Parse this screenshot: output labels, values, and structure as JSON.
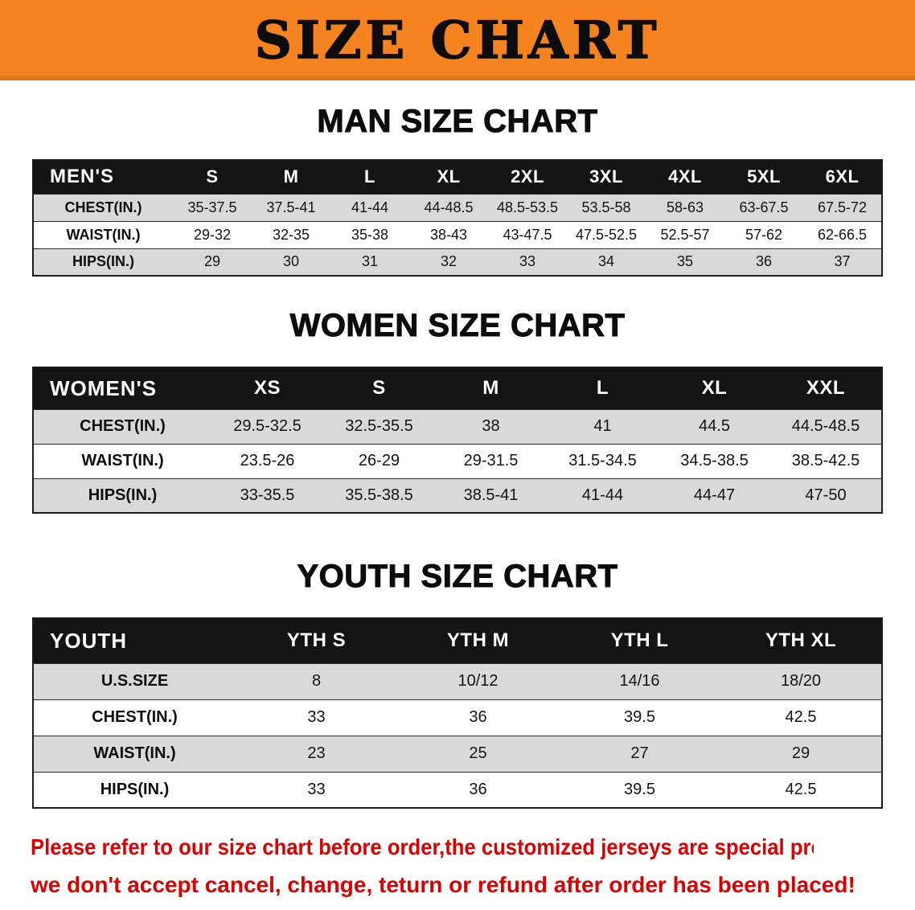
{
  "banner": {
    "title": "SIZE CHART"
  },
  "men": {
    "heading": "MAN SIZE CHART",
    "table": {
      "corner_label": "MEN'S",
      "columns": [
        "S",
        "M",
        "L",
        "XL",
        "2XL",
        "3XL",
        "4XL",
        "5XL",
        "6XL"
      ],
      "rows": [
        {
          "label": "CHEST(IN.)",
          "values": [
            "35-37.5",
            "37.5-41",
            "41-44",
            "44-48.5",
            "48.5-53.5",
            "53.5-58",
            "58-63",
            "63-67.5",
            "67.5-72"
          ]
        },
        {
          "label": "WAIST(IN.)",
          "values": [
            "29-32",
            "32-35",
            "35-38",
            "38-43",
            "43-47.5",
            "47.5-52.5",
            "52.5-57",
            "57-62",
            "62-66.5"
          ]
        },
        {
          "label": "HIPS(IN.)",
          "values": [
            "29",
            "30",
            "31",
            "32",
            "33",
            "34",
            "35",
            "36",
            "37"
          ]
        }
      ]
    }
  },
  "women": {
    "heading": "WOMEN SIZE CHART",
    "table": {
      "corner_label": "WOMEN'S",
      "columns": [
        "XS",
        "S",
        "M",
        "L",
        "XL",
        "XXL"
      ],
      "rows": [
        {
          "label": "CHEST(IN.)",
          "values": [
            "29.5-32.5",
            "32.5-35.5",
            "38",
            "41",
            "44.5",
            "44.5-48.5"
          ]
        },
        {
          "label": "WAIST(IN.)",
          "values": [
            "23.5-26",
            "26-29",
            "29-31.5",
            "31.5-34.5",
            "34.5-38.5",
            "38.5-42.5"
          ]
        },
        {
          "label": "HIPS(IN.)",
          "values": [
            "33-35.5",
            "35.5-38.5",
            "38.5-41",
            "41-44",
            "44-47",
            "47-50"
          ]
        }
      ]
    }
  },
  "youth": {
    "heading": "YOUTH SIZE CHART",
    "table": {
      "corner_label": "YOUTH",
      "columns": [
        "YTH S",
        "YTH M",
        "YTH L",
        "YTH XL"
      ],
      "rows": [
        {
          "label": "U.S.SIZE",
          "values": [
            "8",
            "10/12",
            "14/16",
            "18/20"
          ]
        },
        {
          "label": "CHEST(IN.)",
          "values": [
            "33",
            "36",
            "39.5",
            "42.5"
          ]
        },
        {
          "label": "WAIST(IN.)",
          "values": [
            "23",
            "25",
            "27",
            "29"
          ]
        },
        {
          "label": "HIPS(IN.)",
          "values": [
            "33",
            "36",
            "39.5",
            "42.5"
          ]
        }
      ]
    }
  },
  "footer": {
    "line1": "Please refer to our size chart before order,the customized jerseys are special products,",
    "line2": "we don't accept cancel, change, teturn or refund after order has been placed!"
  },
  "colors": {
    "banner_orange": "#f5831f",
    "header_black": "#141414",
    "row_gray": "#d9d9d9",
    "row_white": "#ffffff",
    "disclaimer_red": "#dd0000"
  }
}
